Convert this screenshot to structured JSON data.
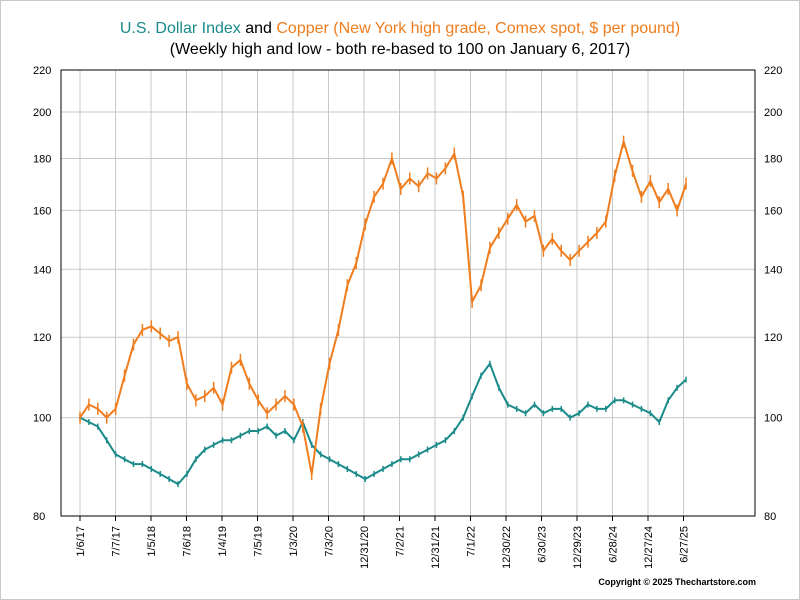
{
  "chart_data": {
    "type": "line",
    "title_parts": [
      {
        "text": "U.S. Dollar Index",
        "color": "#1a8a8a"
      },
      {
        "text": " and ",
        "color": "#000000"
      },
      {
        "text": "Copper (New York high grade, Comex spot, $ per pound)",
        "color": "#f07d1e"
      }
    ],
    "subtitle": "(Weekly high and low - both re-based to 100 on January 6, 2017)",
    "x_tick_labels": [
      "1/6/17",
      "7/7/17",
      "1/5/18",
      "7/6/18",
      "1/4/19",
      "7/5/19",
      "1/3/20",
      "7/3/20",
      "12/31/20",
      "7/2/21",
      "12/31/21",
      "7/1/22",
      "12/30/22",
      "6/30/23",
      "12/29/23",
      "6/28/24",
      "12/27/24",
      "6/27/25"
    ],
    "y_ticks": [
      80,
      100,
      120,
      140,
      160,
      180,
      200,
      220
    ],
    "y_scale": "log",
    "ylim": [
      80,
      220
    ],
    "grid": true,
    "series": [
      {
        "name": "U.S. Dollar Index",
        "color": "#1a8a8a",
        "values": [
          100,
          99,
          98,
          95,
          92,
          91,
          90,
          90,
          89,
          88,
          87,
          86,
          88,
          91,
          93,
          94,
          95,
          95,
          96,
          97,
          97,
          98,
          96,
          97,
          95,
          99,
          94,
          92,
          91,
          90,
          89,
          88,
          87,
          88,
          89,
          90,
          91,
          91,
          92,
          93,
          94,
          95,
          97,
          100,
          105,
          110,
          113,
          107,
          103,
          102,
          101,
          103,
          101,
          102,
          102,
          100,
          101,
          103,
          102,
          102,
          104,
          104,
          103,
          102,
          101,
          99,
          104,
          107,
          109
        ]
      },
      {
        "name": "Copper (New York high grade, Comex spot, $ per pound)",
        "color": "#f07d1e",
        "values": [
          100,
          103,
          102,
          100,
          102,
          110,
          118,
          122,
          123,
          121,
          119,
          120,
          108,
          104,
          105,
          107,
          103,
          112,
          114,
          108,
          104,
          101,
          103,
          105,
          103,
          98,
          88,
          102,
          113,
          122,
          135,
          142,
          155,
          165,
          170,
          180,
          168,
          172,
          169,
          174,
          172,
          176,
          182,
          165,
          130,
          135,
          147,
          152,
          157,
          162,
          156,
          158,
          146,
          150,
          146,
          143,
          146,
          149,
          152,
          156,
          173,
          187,
          175,
          165,
          171,
          163,
          168,
          160,
          170
        ]
      }
    ]
  },
  "copyright": "Copyright © 2025 Thechartstore.com"
}
